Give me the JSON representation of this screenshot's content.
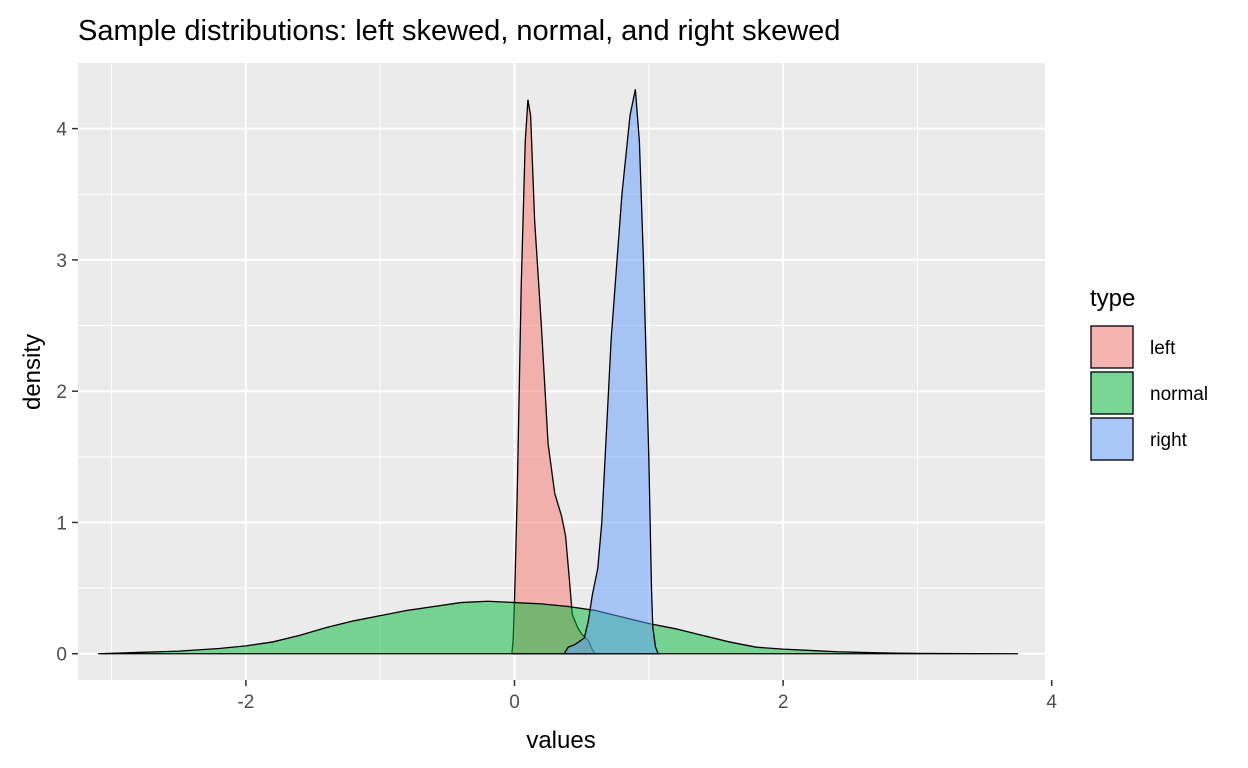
{
  "chart_data": {
    "type": "area",
    "title": "Sample distributions: left skewed, normal, and right skewed",
    "xlabel": "values",
    "ylabel": "density",
    "xlim": [
      -3.25,
      3.95
    ],
    "ylim": [
      -0.2,
      4.5
    ],
    "x_ticks": [
      -2,
      0,
      2,
      4
    ],
    "x_tick_labels": [
      "-2",
      "0",
      "2",
      "4"
    ],
    "y_ticks": [
      0,
      1,
      2,
      3,
      4
    ],
    "y_tick_labels": [
      "0",
      "1",
      "2",
      "3",
      "4"
    ],
    "grid": true,
    "legend": {
      "title": "type",
      "placement": "right",
      "entries": [
        "left",
        "normal",
        "right"
      ]
    },
    "series": [
      {
        "name": "left",
        "color": "#F8766D",
        "points": [
          [
            -0.02,
            0.0
          ],
          [
            -0.01,
            0.1
          ],
          [
            0.0,
            0.4
          ],
          [
            0.02,
            1.2
          ],
          [
            0.05,
            2.8
          ],
          [
            0.08,
            3.9
          ],
          [
            0.1,
            4.22
          ],
          [
            0.12,
            4.1
          ],
          [
            0.15,
            3.3
          ],
          [
            0.2,
            2.5
          ],
          [
            0.25,
            1.6
          ],
          [
            0.3,
            1.22
          ],
          [
            0.35,
            1.05
          ],
          [
            0.38,
            0.9
          ],
          [
            0.41,
            0.55
          ],
          [
            0.43,
            0.3
          ],
          [
            0.47,
            0.2
          ],
          [
            0.5,
            0.15
          ],
          [
            0.55,
            0.1
          ],
          [
            0.58,
            0.03
          ],
          [
            0.6,
            0.0
          ]
        ]
      },
      {
        "name": "normal",
        "color": "#00BA38",
        "points": [
          [
            -3.1,
            0.0
          ],
          [
            -2.8,
            0.01
          ],
          [
            -2.5,
            0.02
          ],
          [
            -2.2,
            0.04
          ],
          [
            -2.0,
            0.06
          ],
          [
            -1.8,
            0.09
          ],
          [
            -1.6,
            0.14
          ],
          [
            -1.4,
            0.2
          ],
          [
            -1.2,
            0.25
          ],
          [
            -1.0,
            0.29
          ],
          [
            -0.8,
            0.33
          ],
          [
            -0.6,
            0.36
          ],
          [
            -0.4,
            0.39
          ],
          [
            -0.2,
            0.4
          ],
          [
            0.0,
            0.39
          ],
          [
            0.2,
            0.38
          ],
          [
            0.4,
            0.36
          ],
          [
            0.6,
            0.33
          ],
          [
            0.8,
            0.28
          ],
          [
            1.0,
            0.23
          ],
          [
            1.2,
            0.19
          ],
          [
            1.4,
            0.14
          ],
          [
            1.6,
            0.09
          ],
          [
            1.8,
            0.05
          ],
          [
            2.0,
            0.035
          ],
          [
            2.2,
            0.025
          ],
          [
            2.4,
            0.015
          ],
          [
            2.7,
            0.007
          ],
          [
            3.0,
            0.003
          ],
          [
            3.4,
            0.001
          ],
          [
            3.75,
            0.0
          ]
        ]
      },
      {
        "name": "right",
        "color": "#619CFF",
        "points": [
          [
            0.37,
            0.0
          ],
          [
            0.4,
            0.05
          ],
          [
            0.45,
            0.07
          ],
          [
            0.52,
            0.12
          ],
          [
            0.55,
            0.25
          ],
          [
            0.58,
            0.45
          ],
          [
            0.62,
            0.65
          ],
          [
            0.65,
            1.0
          ],
          [
            0.68,
            1.6
          ],
          [
            0.72,
            2.4
          ],
          [
            0.8,
            3.5
          ],
          [
            0.86,
            4.1
          ],
          [
            0.9,
            4.3
          ],
          [
            0.93,
            3.9
          ],
          [
            0.96,
            3.0
          ],
          [
            1.0,
            1.5
          ],
          [
            1.02,
            0.5
          ],
          [
            1.03,
            0.2
          ],
          [
            1.05,
            0.05
          ],
          [
            1.07,
            0.0
          ]
        ]
      }
    ]
  }
}
